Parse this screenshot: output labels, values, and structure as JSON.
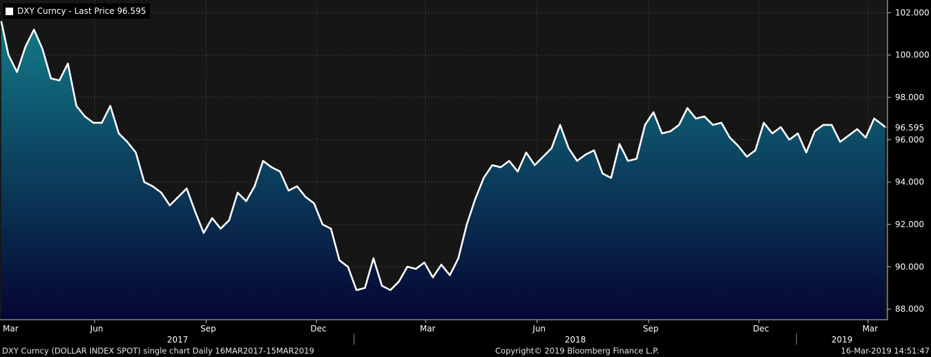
{
  "legend": {
    "label": "DXY Curncy - Last Price 96.595"
  },
  "footer": {
    "left": "DXY Curncy (DOLLAR INDEX SPOT) single chart  Daily 16MAR2017-15MAR2019",
    "center": "Copyright© 2019 Bloomberg Finance L.P.",
    "right": "16-Mar-2019 14:51:47"
  },
  "colors": {
    "background": "#000000",
    "plot_background": "#161616",
    "line": "#ffffff",
    "fill_top": "#127a88",
    "fill_bottom": "#050533",
    "last_price_marker": "#e0891e",
    "grid": "#5a5a5a"
  },
  "chart_data": {
    "type": "area",
    "ylim": [
      87.5,
      102.6
    ],
    "y_ticks": [
      "88.000",
      "90.000",
      "92.000",
      "94.000",
      "96.000",
      "98.000",
      "100.000",
      "102.000"
    ],
    "last_price": {
      "value": 96.595,
      "label": "96.595"
    },
    "x_month_labels": [
      "Mar",
      "Jun",
      "Sep",
      "Dec",
      "Mar",
      "Jun",
      "Sep",
      "Dec",
      "Mar"
    ],
    "x_year_labels": [
      "2017",
      "2018",
      "2019"
    ],
    "grid": true,
    "series": [
      {
        "x": [
          "2017-03-16",
          "2017-03-22",
          "2017-03-29",
          "2017-04-05",
          "2017-04-12",
          "2017-04-19",
          "2017-04-26",
          "2017-05-03",
          "2017-05-10",
          "2017-05-17",
          "2017-05-24",
          "2017-05-31",
          "2017-06-07",
          "2017-06-14",
          "2017-06-21",
          "2017-06-28",
          "2017-07-05",
          "2017-07-12",
          "2017-07-19",
          "2017-07-26",
          "2017-08-02",
          "2017-08-09",
          "2017-08-16",
          "2017-08-23",
          "2017-08-30",
          "2017-09-06",
          "2017-09-13",
          "2017-09-20",
          "2017-09-27",
          "2017-10-04",
          "2017-10-11",
          "2017-10-18",
          "2017-10-25",
          "2017-11-01",
          "2017-11-08",
          "2017-11-15",
          "2017-11-22",
          "2017-11-29",
          "2017-12-06",
          "2017-12-13",
          "2017-12-20",
          "2017-12-27",
          "2018-01-03",
          "2018-01-10",
          "2018-01-17",
          "2018-01-24",
          "2018-01-31",
          "2018-02-07",
          "2018-02-14",
          "2018-02-21",
          "2018-02-28",
          "2018-03-07",
          "2018-03-14",
          "2018-03-21",
          "2018-03-28",
          "2018-04-04",
          "2018-04-11",
          "2018-04-18",
          "2018-04-25",
          "2018-05-02",
          "2018-05-09",
          "2018-05-16",
          "2018-05-23",
          "2018-05-30",
          "2018-06-06",
          "2018-06-13",
          "2018-06-20",
          "2018-06-27",
          "2018-07-04",
          "2018-07-11",
          "2018-07-18",
          "2018-07-25",
          "2018-08-01",
          "2018-08-08",
          "2018-08-15",
          "2018-08-22",
          "2018-08-29",
          "2018-09-05",
          "2018-09-12",
          "2018-09-19",
          "2018-09-26",
          "2018-10-03",
          "2018-10-10",
          "2018-10-17",
          "2018-10-24",
          "2018-10-31",
          "2018-11-07",
          "2018-11-14",
          "2018-11-21",
          "2018-11-28",
          "2018-12-05",
          "2018-12-12",
          "2018-12-19",
          "2018-12-26",
          "2019-01-02",
          "2019-01-09",
          "2019-01-16",
          "2019-01-23",
          "2019-01-30",
          "2019-02-06",
          "2019-02-13",
          "2019-02-20",
          "2019-02-27",
          "2019-03-06",
          "2019-03-13",
          "2019-03-15"
        ],
        "values": [
          101.6,
          100.0,
          99.2,
          100.4,
          101.2,
          100.3,
          98.9,
          98.8,
          99.6,
          97.6,
          97.1,
          96.8,
          96.8,
          97.6,
          96.3,
          95.9,
          95.4,
          94.0,
          93.8,
          93.5,
          92.9,
          93.3,
          93.7,
          92.6,
          91.6,
          92.3,
          91.8,
          92.2,
          93.5,
          93.1,
          93.8,
          95.0,
          94.7,
          94.5,
          93.6,
          93.8,
          93.3,
          93.0,
          92.0,
          91.8,
          90.3,
          90.0,
          88.9,
          89.0,
          90.4,
          89.1,
          88.9,
          89.3,
          90.0,
          89.9,
          90.2,
          89.5,
          90.1,
          89.6,
          90.4,
          92.0,
          93.2,
          94.2,
          94.8,
          94.7,
          95.0,
          94.5,
          95.4,
          94.8,
          95.2,
          95.6,
          96.7,
          95.6,
          95.0,
          95.3,
          95.5,
          94.4,
          94.2,
          95.8,
          95.0,
          95.1,
          96.7,
          97.3,
          96.3,
          96.4,
          96.7,
          97.5,
          97.0,
          97.1,
          96.7,
          96.8,
          96.1,
          95.7,
          95.2,
          95.5,
          96.8,
          96.3,
          96.6,
          96.0,
          96.3,
          95.4,
          96.4,
          96.7,
          96.7,
          95.9,
          96.2,
          96.5,
          96.1,
          97.0,
          96.7,
          96.6
        ]
      }
    ]
  }
}
